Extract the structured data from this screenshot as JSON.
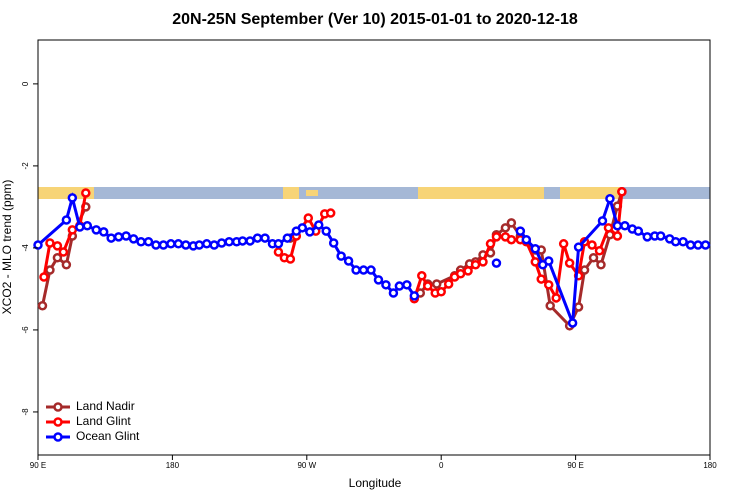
{
  "chart_data": {
    "type": "line",
    "title": "20N-25N September (Ver 10)   2015-01-01 to 2020-12-18",
    "xlabel": "Longitude",
    "ylabel": "XCO2 - MLO trend (ppm)",
    "xlim": [
      90,
      540
    ],
    "ylim": [
      -9.05,
      1.07
    ],
    "xticks": [
      {
        "value": 90,
        "label": "90 E"
      },
      180,
      {
        "value": 270,
        "label": "90 W"
      },
      {
        "value": 360,
        "label": "0"
      },
      {
        "value": 450,
        "label": "90 E"
      },
      {
        "value": 540,
        "label": "180"
      }
    ],
    "yticks": [
      0,
      -2,
      -4,
      -6,
      -8
    ],
    "legend": "bottom-left",
    "series": [
      {
        "name": "Land Nadir",
        "color": "#a52a2a",
        "x": [
          93,
          98,
          103,
          109,
          113,
          122,
          null,
          259,
          null,
          346,
          351,
          357,
          369,
          373,
          379,
          383,
          388,
          393,
          397,
          403,
          407,
          413,
          417,
          423,
          427,
          433,
          446,
          452,
          456,
          462,
          467,
          473,
          478,
          481
        ],
        "values": [
          -5.41,
          -4.54,
          -4.24,
          -4.41,
          -3.71,
          -3.0,
          null,
          -3.76,
          null,
          -5.1,
          -4.88,
          -4.88,
          -4.68,
          -4.54,
          -4.39,
          -4.34,
          -4.17,
          -4.12,
          -3.68,
          -3.51,
          -3.39,
          -3.71,
          -3.83,
          -4.05,
          -4.05,
          -5.41,
          -5.9,
          -5.44,
          -4.54,
          -4.24,
          -4.41,
          -3.68,
          -2.98,
          -2.63
        ]
      },
      {
        "name": "Land Glint",
        "color": "#ff0000",
        "x": [
          94,
          98,
          103,
          107,
          113,
          118,
          122,
          null,
          251,
          255,
          259,
          263,
          271,
          276,
          282,
          286,
          null,
          342,
          347,
          351,
          356,
          360,
          365,
          369,
          373,
          378,
          383,
          388,
          393,
          397,
          403,
          407,
          413,
          417,
          423,
          427,
          432,
          437,
          442,
          446,
          452,
          456,
          461,
          466,
          472,
          478,
          481
        ],
        "values": [
          -4.71,
          -3.88,
          -3.95,
          -4.1,
          -3.56,
          -3.46,
          -2.66,
          null,
          -4.1,
          -4.24,
          -4.27,
          -3.71,
          -3.27,
          -3.59,
          -3.17,
          -3.15,
          null,
          -5.24,
          -4.68,
          -4.93,
          -5.1,
          -5.07,
          -4.88,
          -4.71,
          -4.63,
          -4.56,
          -4.41,
          -4.34,
          -3.9,
          -3.73,
          -3.73,
          -3.8,
          -3.8,
          -3.85,
          -4.34,
          -4.76,
          -4.9,
          -5.22,
          -3.9,
          -4.37,
          -4.68,
          -3.85,
          -3.93,
          -4.07,
          -3.51,
          -3.71,
          -2.63
        ]
      },
      {
        "name": "Ocean Glint",
        "color": "#0000ff",
        "x": [
          90,
          109,
          113,
          118,
          123,
          129,
          134,
          139,
          144,
          149,
          154,
          159,
          164,
          169,
          174,
          179,
          184,
          189,
          194,
          198,
          203,
          208,
          213,
          218,
          223,
          227,
          232,
          237,
          242,
          247,
          251,
          257,
          263,
          267,
          272,
          278,
          283,
          288,
          293,
          298,
          303,
          308,
          313,
          318,
          323,
          328,
          332,
          337,
          342,
          null,
          397,
          null,
          413,
          417,
          423,
          428,
          432,
          448,
          452,
          468,
          473,
          478,
          483,
          488,
          492,
          498,
          503,
          507,
          513,
          517,
          522,
          527,
          532,
          537
        ],
        "values": [
          -3.93,
          -3.32,
          -2.78,
          -3.49,
          -3.46,
          -3.56,
          -3.61,
          -3.76,
          -3.73,
          -3.71,
          -3.78,
          -3.85,
          -3.85,
          -3.93,
          -3.93,
          -3.9,
          -3.9,
          -3.93,
          -3.95,
          -3.93,
          -3.9,
          -3.93,
          -3.88,
          -3.85,
          -3.85,
          -3.83,
          -3.83,
          -3.76,
          -3.76,
          -3.9,
          -3.9,
          -3.76,
          -3.59,
          -3.51,
          -3.61,
          -3.44,
          -3.59,
          -3.88,
          -4.2,
          -4.32,
          -4.54,
          -4.54,
          -4.54,
          -4.78,
          -4.9,
          -5.1,
          -4.93,
          -4.9,
          -5.17,
          null,
          -4.37,
          null,
          -3.59,
          -3.8,
          -4.02,
          -4.41,
          -4.32,
          -5.83,
          -3.98,
          -3.34,
          -2.8,
          -3.46,
          -3.46,
          -3.54,
          -3.59,
          -3.73,
          -3.71,
          -3.71,
          -3.78,
          -3.85,
          -3.85,
          -3.93,
          -3.93,
          -3.93
        ]
      }
    ]
  }
}
